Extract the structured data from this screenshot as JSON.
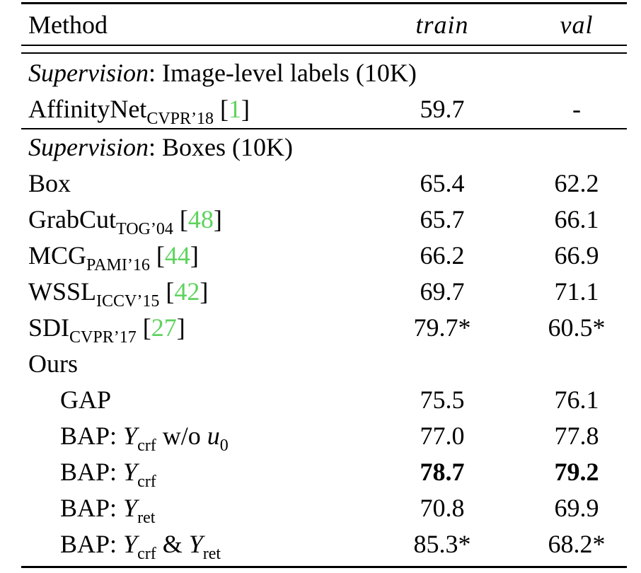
{
  "table": {
    "header": [
      "Method",
      "train",
      "val"
    ],
    "sections": [
      {
        "label": [
          {
            "text": "Supervision",
            "style": "it"
          },
          {
            "text": ": Image-level labels (10K)"
          }
        ],
        "rows": [
          {
            "method": [
              {
                "text": "AffinityNet"
              },
              {
                "text": "CVPR’18",
                "style": "sub"
              },
              {
                "text": " ["
              },
              {
                "text": "1",
                "style": "cite"
              },
              {
                "text": "]"
              }
            ],
            "train": "59.7",
            "val": "-"
          }
        ]
      },
      {
        "label": [
          {
            "text": "Supervision",
            "style": "it"
          },
          {
            "text": ": Boxes (10K)"
          }
        ],
        "rows": [
          {
            "method": [
              {
                "text": "Box"
              }
            ],
            "train": "65.4",
            "val": "62.2"
          },
          {
            "method": [
              {
                "text": "GrabCut"
              },
              {
                "text": "TOG’04",
                "style": "sub"
              },
              {
                "text": " ["
              },
              {
                "text": "48",
                "style": "cite"
              },
              {
                "text": "]"
              }
            ],
            "train": "65.7",
            "val": "66.1"
          },
          {
            "method": [
              {
                "text": "MCG"
              },
              {
                "text": "PAMI’16",
                "style": "sub"
              },
              {
                "text": " ["
              },
              {
                "text": "44",
                "style": "cite"
              },
              {
                "text": "]"
              }
            ],
            "train": "66.2",
            "val": "66.9"
          },
          {
            "method": [
              {
                "text": "WSSL"
              },
              {
                "text": "ICCV’15",
                "style": "sub"
              },
              {
                "text": " ["
              },
              {
                "text": "42",
                "style": "cite"
              },
              {
                "text": "]"
              }
            ],
            "train": "69.7",
            "val": "71.1"
          },
          {
            "method": [
              {
                "text": "SDI"
              },
              {
                "text": "CVPR’17",
                "style": "sub"
              },
              {
                "text": " ["
              },
              {
                "text": "27",
                "style": "cite"
              },
              {
                "text": "]"
              }
            ],
            "train": "79.7*",
            "val": "60.5*"
          },
          {
            "method": [
              {
                "text": "Ours"
              }
            ],
            "train": null,
            "val": null
          },
          {
            "method": [
              {
                "text": "GAP"
              }
            ],
            "train": "75.5",
            "val": "76.1",
            "indent": true
          },
          {
            "method": [
              {
                "text": "BAP: "
              },
              {
                "text": "Y",
                "style": "math"
              },
              {
                "text": "crf",
                "style": "sub"
              },
              {
                "text": " w/o "
              },
              {
                "text": "u",
                "style": "math"
              },
              {
                "text": "0",
                "style": "sub"
              }
            ],
            "train": "77.0",
            "val": "77.8",
            "indent": true
          },
          {
            "method": [
              {
                "text": "BAP: "
              },
              {
                "text": "Y",
                "style": "math"
              },
              {
                "text": "crf",
                "style": "sub"
              }
            ],
            "train": "78.7",
            "val": "79.2",
            "indent": true,
            "bold": true
          },
          {
            "method": [
              {
                "text": "BAP: "
              },
              {
                "text": "Y",
                "style": "math"
              },
              {
                "text": "ret",
                "style": "sub"
              }
            ],
            "train": "70.8",
            "val": "69.9",
            "indent": true
          },
          {
            "method": [
              {
                "text": "BAP: "
              },
              {
                "text": "Y",
                "style": "math"
              },
              {
                "text": "crf",
                "style": "sub"
              },
              {
                "text": " & "
              },
              {
                "text": "Y",
                "style": "math"
              },
              {
                "text": "ret",
                "style": "sub"
              }
            ],
            "train": "85.3*",
            "val": "68.2*",
            "indent": true
          }
        ]
      }
    ]
  }
}
